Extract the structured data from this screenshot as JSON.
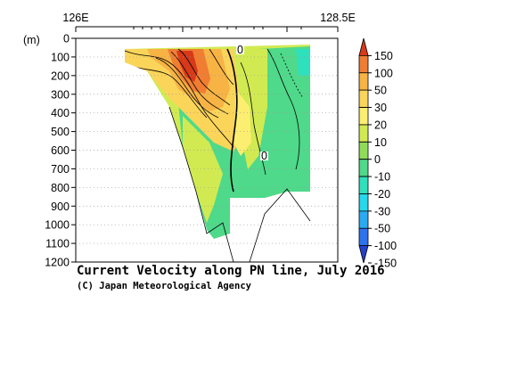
{
  "chart_data": {
    "type": "heatmap",
    "title": "Current Velocity along PN line, July 2016",
    "credit": "(C) Japan Meteorological Agency",
    "y_unit": "(m)",
    "x_tick_labels": [
      "126E",
      "128.5E"
    ],
    "x_range": [
      126.0,
      128.5
    ],
    "y_ticks": [
      0,
      100,
      200,
      300,
      400,
      500,
      600,
      700,
      800,
      900,
      1000,
      1100,
      1200
    ],
    "y_range": [
      0,
      1200
    ],
    "y_inverted": true,
    "grid": true,
    "colorbar_labels": [
      "150",
      "100",
      "50",
      "30",
      "20",
      "10",
      "0",
      "-10",
      "-20",
      "-30",
      "-50",
      "-100",
      "-150"
    ],
    "colorbar_levels": [
      150,
      100,
      50,
      30,
      20,
      10,
      0,
      -10,
      -20,
      -30,
      -50,
      -100,
      -150
    ],
    "colorbar_colors": [
      "#d63a18",
      "#f07d32",
      "#f7b344",
      "#fbd45a",
      "#fcee70",
      "#d2ea52",
      "#8fdc59",
      "#4fd98a",
      "#2fe0bd",
      "#26d8ec",
      "#2aaaf2",
      "#2f72f0",
      "#2440c8"
    ],
    "contour_labels": [
      "0",
      "0"
    ],
    "fields": {
      "strong_core_cm_s": 150,
      "kuroshio_core_cm_s": 100,
      "shelf_slope_cm_s": 30,
      "interior_cm_s": 10,
      "offshore_cm_s": -10
    }
  }
}
